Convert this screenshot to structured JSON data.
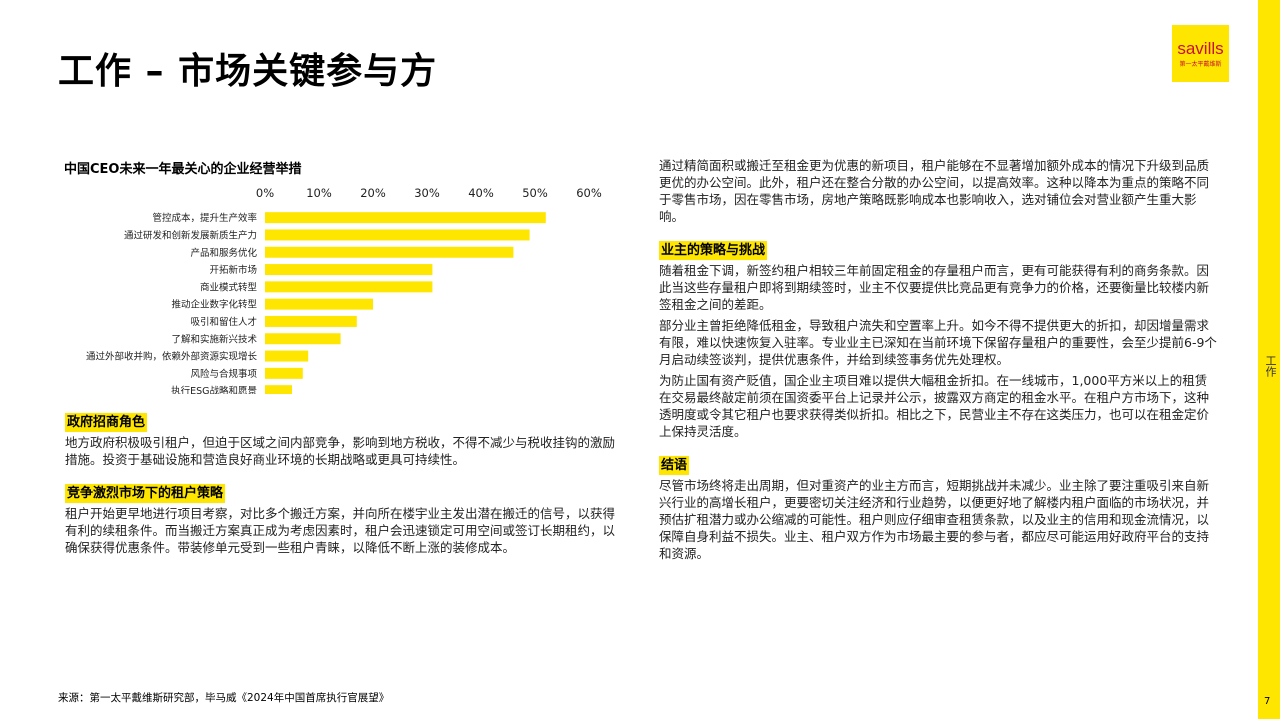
{
  "header": {
    "title": "工作 – 市场关键参与方",
    "logo_text": "savills",
    "logo_sub": "第一太平戴维斯"
  },
  "side": {
    "label": "工作",
    "page_number": "7"
  },
  "colors": {
    "accent": "#ffe600",
    "brand_red": "#c8102e"
  },
  "chart_data": {
    "type": "bar",
    "orientation": "horizontal",
    "title": "中国CEO未来一年最关心的企业经营举措",
    "categories": [
      "管控成本，提升生产效率",
      "通过研发和创新发展新质生产力",
      "产品和服务优化",
      "开拓新市场",
      "商业模式转型",
      "推动企业数字化转型",
      "吸引和留住人才",
      "了解和实施新兴技术",
      "通过外部收并购，依赖外部资源实现增长",
      "风险与合规事项",
      "执行ESG战略和愿景"
    ],
    "values": [
      52,
      49,
      46,
      31,
      31,
      20,
      17,
      14,
      8,
      7,
      5
    ],
    "xlim": [
      0,
      60
    ],
    "ticks": [
      "0%",
      "10%",
      "20%",
      "30%",
      "40%",
      "50%",
      "60%"
    ],
    "axis_position": "top",
    "bar_color": "#ffe600"
  },
  "left": {
    "sections": [
      {
        "heading": "政府招商角色",
        "paragraphs": [
          "地方政府积极吸引租户，但迫于区域之间内部竞争，影响到地方税收，不得不减少与税收挂钩的激励措施。投资于基础设施和营造良好商业环境的长期战略或更具可持续性。"
        ]
      },
      {
        "heading": "竞争激烈市场下的租户策略",
        "paragraphs": [
          "租户开始更早地进行项目考察，对比多个搬迁方案，并向所在楼宇业主发出潜在搬迁的信号，以获得有利的续租条件。而当搬迁方案真正成为考虑因素时，租户会迅速锁定可用空间或签订长期租约，以确保获得优惠条件。带装修单元受到一些租户青睐，以降低不断上涨的装修成本。"
        ]
      }
    ]
  },
  "right": {
    "intro": "通过精简面积或搬迁至租金更为优惠的新项目，租户能够在不显著增加额外成本的情况下升级到品质更优的办公空间。此外，租户还在整合分散的办公空间，以提高效率。这种以降本为重点的策略不同于零售市场，因在零售市场，房地产策略既影响成本也影响收入，选对铺位会对营业额产生重大影响。",
    "sections": [
      {
        "heading": "业主的策略与挑战",
        "paragraphs": [
          "随着租金下调，新签约租户相较三年前固定租金的存量租户而言，更有可能获得有利的商务条款。因此当这些存量租户即将到期续签时，业主不仅要提供比竞品更有竞争力的价格，还要衡量比较楼内新签租金之间的差距。",
          "部分业主曾拒绝降低租金，导致租户流失和空置率上升。如今不得不提供更大的折扣，却因增量需求有限，难以快速恢复入驻率。专业业主已深知在当前环境下保留存量租户的重要性，会至少提前6-9个月启动续签谈判，提供优惠条件，并给到续签事务优先处理权。",
          "为防止国有资产贬值，国企业主项目难以提供大幅租金折扣。在一线城市，1,000平方米以上的租赁在交易最终敲定前须在国资委平台上记录并公示，披露双方商定的租金水平。在租户方市场下，这种透明度或令其它租户也要求获得类似折扣。相比之下，民营业主不存在这类压力，也可以在租金定价上保持灵活度。"
        ]
      },
      {
        "heading": "结语",
        "paragraphs": [
          "尽管市场终将走出周期，但对重资产的业主方而言，短期挑战并未减少。业主除了要注重吸引来自新兴行业的高增长租户，更要密切关注经济和行业趋势，以便更好地了解楼内租户面临的市场状况，并预估扩租潜力或办公缩减的可能性。租户则应仔细审查租赁条款，以及业主的信用和现金流情况，以保障自身利益不损失。业主、租户双方作为市场最主要的参与者，都应尽可能运用好政府平台的支持和资源。"
        ]
      }
    ]
  },
  "footer": {
    "source": "来源：第一太平戴维斯研究部，毕马威《2024年中国首席执行官展望》"
  }
}
